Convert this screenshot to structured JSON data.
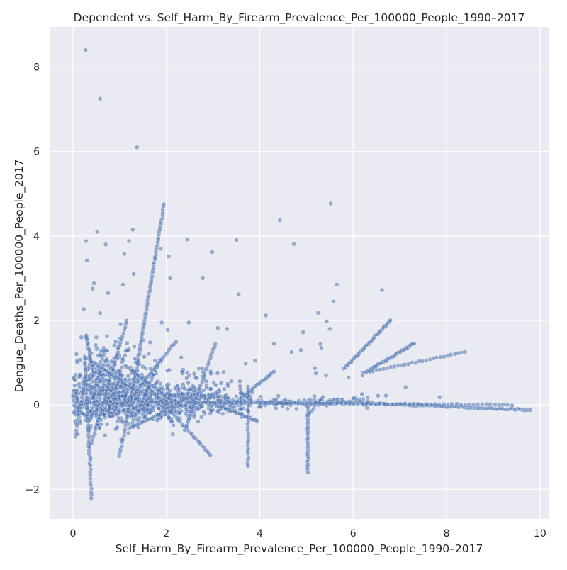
{
  "chart_data": {
    "type": "scatter",
    "title": "Dependent vs. Self_Harm_By_Firearm_Prevalence_Per_100000_People_1990–2017",
    "xlabel": "Self_Harm_By_Firearm_Prevalence_Per_100000_People_1990–2017",
    "ylabel": "Dengue_Deaths_Per_100000_People_2017",
    "xlim": [
      -0.5,
      10.2
    ],
    "ylim": [
      -2.7,
      8.95
    ],
    "xticks": [
      0,
      2,
      4,
      6,
      8,
      10
    ],
    "xtick_labels": [
      "0",
      "2",
      "4",
      "6",
      "8",
      "10"
    ],
    "yticks": [
      -2,
      0,
      2,
      4,
      6,
      8
    ],
    "ytick_labels": [
      "−2",
      "0",
      "2",
      "4",
      "6",
      "8"
    ],
    "grid": true,
    "point_color": "#4c72b0",
    "background_color": "#eaeaf2",
    "outliers": [
      [
        0.27,
        8.4
      ],
      [
        0.58,
        7.25
      ],
      [
        1.37,
        6.1
      ],
      [
        5.52,
        4.77
      ],
      [
        4.43,
        4.37
      ],
      [
        1.28,
        4.15
      ],
      [
        0.52,
        4.1
      ],
      [
        2.45,
        3.92
      ],
      [
        3.5,
        3.9
      ],
      [
        0.28,
        3.88
      ],
      [
        1.2,
        3.88
      ],
      [
        4.73,
        3.81
      ],
      [
        0.7,
        3.8
      ],
      [
        1.88,
        3.7
      ],
      [
        0.3,
        3.42
      ],
      [
        2.98,
        3.62
      ],
      [
        1.1,
        3.58
      ],
      [
        2.05,
        3.52
      ],
      [
        1.3,
        3.1
      ],
      [
        2.08,
        3.0
      ],
      [
        2.78,
        3.0
      ],
      [
        0.45,
        2.88
      ],
      [
        5.65,
        2.85
      ],
      [
        1.07,
        2.85
      ],
      [
        0.42,
        2.75
      ],
      [
        6.62,
        2.72
      ],
      [
        0.75,
        2.65
      ],
      [
        3.55,
        2.62
      ],
      [
        5.58,
        2.45
      ],
      [
        0.23,
        2.27
      ],
      [
        0.58,
        2.17
      ],
      [
        4.13,
        2.12
      ],
      [
        5.25,
        2.18
      ],
      [
        5.43,
        1.98
      ],
      [
        5.5,
        1.8
      ],
      [
        2.48,
        1.95
      ],
      [
        3.1,
        1.82
      ],
      [
        3.3,
        1.8
      ],
      [
        4.93,
        1.72
      ],
      [
        1.9,
        1.95
      ],
      [
        2.03,
        1.78
      ],
      [
        0.18,
        1.6
      ],
      [
        0.5,
        1.6
      ],
      [
        4.3,
        1.45
      ],
      [
        5.3,
        1.44
      ],
      [
        5.32,
        1.35
      ],
      [
        4.68,
        1.25
      ],
      [
        4.88,
        1.3
      ],
      [
        5.18,
        0.87
      ],
      [
        5.2,
        0.75
      ],
      [
        5.42,
        0.7
      ],
      [
        5.9,
        0.65
      ],
      [
        6.2,
        0.7
      ],
      [
        7.12,
        0.42
      ],
      [
        7.85,
        0.18
      ],
      [
        6.7,
        0.22
      ],
      [
        3.9,
        1.05
      ],
      [
        3.7,
        0.98
      ]
    ],
    "segments": [
      {
        "from": [
          0.25,
          1.15
        ],
        "to": [
          0.4,
          -2.2
        ],
        "n": 46
      },
      {
        "from": [
          0.4,
          -0.9
        ],
        "to": [
          1.15,
          2.0
        ],
        "n": 40
      },
      {
        "from": [
          0.05,
          -0.75
        ],
        "to": [
          0.25,
          0.55
        ],
        "n": 18
      },
      {
        "from": [
          1.25,
          0.1
        ],
        "to": [
          1.95,
          4.75
        ],
        "n": 72
      },
      {
        "from": [
          1.0,
          -1.2
        ],
        "to": [
          1.3,
          0.45
        ],
        "n": 22
      },
      {
        "from": [
          1.2,
          -0.55
        ],
        "to": [
          2.3,
          0.0
        ],
        "n": 28
      },
      {
        "from": [
          1.35,
          0.75
        ],
        "to": [
          2.95,
          -1.2
        ],
        "n": 45
      },
      {
        "from": [
          2.4,
          -0.6
        ],
        "to": [
          3.05,
          1.45
        ],
        "n": 30
      },
      {
        "from": [
          1.45,
          0.0
        ],
        "to": [
          1.85,
          1.05
        ],
        "n": 14
      },
      {
        "from": [
          0.3,
          1.1
        ],
        "to": [
          1.4,
          0.3
        ],
        "n": 28
      },
      {
        "from": [
          1.2,
          0.1
        ],
        "to": [
          2.2,
          1.5
        ],
        "n": 28
      },
      {
        "from": [
          0.28,
          1.65
        ],
        "to": [
          0.45,
          0.7
        ],
        "n": 20
      },
      {
        "from": [
          3.5,
          0.05
        ],
        "to": [
          4.3,
          0.8
        ],
        "n": 24
      },
      {
        "from": [
          3.6,
          0.3
        ],
        "to": [
          3.82,
          0.1
        ],
        "n": 8
      },
      {
        "from": [
          3.75,
          0.45
        ],
        "to": [
          3.75,
          -1.45
        ],
        "n": 28
      },
      {
        "from": [
          3.58,
          0.55
        ],
        "to": [
          3.62,
          -0.3
        ],
        "n": 10
      },
      {
        "from": [
          3.0,
          0.02
        ],
        "to": [
          3.95,
          -0.38
        ],
        "n": 26
      },
      {
        "from": [
          5.03,
          0.0
        ],
        "to": [
          5.03,
          -1.6
        ],
        "n": 26
      },
      {
        "from": [
          5.03,
          -0.25
        ],
        "to": [
          5.35,
          0.2
        ],
        "n": 9
      },
      {
        "from": [
          5.8,
          0.85
        ],
        "to": [
          6.8,
          2.0
        ],
        "n": 34
      },
      {
        "from": [
          6.3,
          0.8
        ],
        "to": [
          7.3,
          1.45
        ],
        "n": 32
      },
      {
        "from": [
          6.2,
          0.75
        ],
        "to": [
          8.4,
          1.25
        ],
        "n": 30
      },
      {
        "from": [
          5.5,
          0.08
        ],
        "to": [
          9.8,
          -0.12
        ],
        "n": 80
      },
      {
        "from": [
          4.0,
          0.05
        ],
        "to": [
          9.4,
          0.0
        ],
        "n": 60
      },
      {
        "from": [
          2.5,
          0.06
        ],
        "to": [
          5.5,
          0.04
        ],
        "n": 55
      },
      {
        "from": [
          1.9,
          -0.15
        ],
        "to": [
          2.6,
          0.25
        ],
        "n": 16
      },
      {
        "from": [
          1.15,
          0.9
        ],
        "to": [
          1.9,
          0.3
        ],
        "n": 18
      }
    ],
    "clusters": [
      {
        "cx": 0.9,
        "cy": 0.2,
        "sx": 0.55,
        "sy": 0.35,
        "n": 520
      },
      {
        "cx": 0.55,
        "cy": 0.55,
        "sx": 0.3,
        "sy": 0.45,
        "n": 130
      },
      {
        "cx": 1.4,
        "cy": 0.05,
        "sx": 0.6,
        "sy": 0.2,
        "n": 260
      },
      {
        "cx": 2.4,
        "cy": 0.08,
        "sx": 0.55,
        "sy": 0.18,
        "n": 180
      },
      {
        "cx": 3.3,
        "cy": 0.05,
        "sx": 0.4,
        "sy": 0.12,
        "n": 90
      },
      {
        "cx": 1.1,
        "cy": 0.95,
        "sx": 0.35,
        "sy": 0.4,
        "n": 60
      },
      {
        "cx": 2.7,
        "cy": 0.45,
        "sx": 0.35,
        "sy": 0.3,
        "n": 45
      },
      {
        "cx": 4.6,
        "cy": 0.05,
        "sx": 0.5,
        "sy": 0.06,
        "n": 40
      },
      {
        "cx": 5.8,
        "cy": 0.08,
        "sx": 0.45,
        "sy": 0.06,
        "n": 40
      }
    ]
  }
}
